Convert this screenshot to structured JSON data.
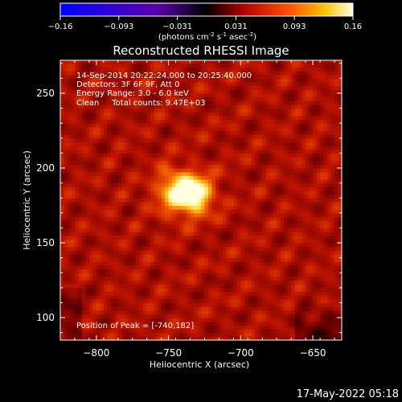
{
  "colorbar": {
    "ticks": [
      "-0.16",
      "-0.093",
      "-0.031",
      "0.031",
      "0.093",
      "0.16"
    ],
    "units_main": "(photons cm",
    "units_exp1": "-2",
    "units_mid": " s",
    "units_exp2": "-1",
    "units_tail": " asec",
    "units_exp3": "-2",
    "units_close": ")"
  },
  "plot_title": "Reconstructed RHESSI Image",
  "annotations": [
    "14-Sep-2014 20:22:24.000 to 20:25:40.000",
    "Detectors: 3F 6F 9F, Att 0",
    "Energy Range: 3.0 - 6.0 keV",
    "Clean     Total counts: 9.47E+03"
  ],
  "peak_label": "Position of Peak = [-740,182]",
  "footer_timestamp": "17-May-2022 05:18",
  "chart_data": {
    "type": "heatmap",
    "title": "Reconstructed RHESSI Image",
    "xlabel": "Heliocentric X (arcsec)",
    "ylabel": "Heliocentric Y (arcsec)",
    "xlim": [
      -825,
      -630
    ],
    "ylim": [
      85,
      272
    ],
    "xticks": [
      -800,
      -750,
      -700,
      -650
    ],
    "yticks": [
      100,
      150,
      200,
      250
    ],
    "xtick_labels": [
      "−800",
      "−750",
      "−700",
      "−650"
    ],
    "ytick_labels": [
      "100",
      "150",
      "200",
      "250"
    ],
    "colormap": "red-temperature",
    "color_range": [
      -0.16,
      0.16
    ],
    "source_peak": {
      "x": -740,
      "y": 182,
      "value": 0.16
    },
    "source_extent_arcsec": [
      22,
      18
    ]
  }
}
